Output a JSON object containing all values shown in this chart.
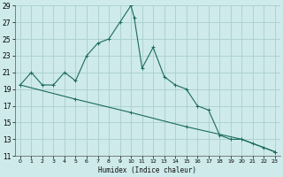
{
  "xlabel": "Humidex (Indice chaleur)",
  "ylabel": "",
  "bg_color": "#ceeaea",
  "grid_color": "#aacece",
  "line_color": "#1a6b5a",
  "xlim": [
    -0.5,
    23.5
  ],
  "ylim": [
    11,
    29
  ],
  "xticks": [
    0,
    1,
    2,
    3,
    4,
    5,
    6,
    7,
    8,
    9,
    10,
    11,
    12,
    13,
    14,
    15,
    16,
    17,
    18,
    19,
    20,
    21,
    22,
    23
  ],
  "yticks": [
    11,
    13,
    15,
    17,
    19,
    21,
    23,
    25,
    27,
    29
  ],
  "curve_x": [
    0,
    1,
    2,
    3,
    4,
    5,
    6,
    7,
    8,
    9,
    10,
    10.3,
    11,
    12,
    13,
    14,
    15,
    16,
    17,
    18,
    19,
    20,
    21,
    22,
    23
  ],
  "curve_y": [
    19.5,
    21,
    19.5,
    19.5,
    21,
    20,
    23,
    24.5,
    25,
    27,
    29,
    27.5,
    21.5,
    24,
    20.5,
    19.5,
    19,
    17,
    16.5,
    13.5,
    13,
    13,
    12.5,
    12,
    11.5
  ],
  "straight_x": [
    0,
    5,
    10,
    15,
    20,
    23
  ],
  "straight_y": [
    19.5,
    17.8,
    16.2,
    14.5,
    13.0,
    11.5
  ],
  "figsize": [
    3.2,
    2.0
  ],
  "dpi": 100
}
